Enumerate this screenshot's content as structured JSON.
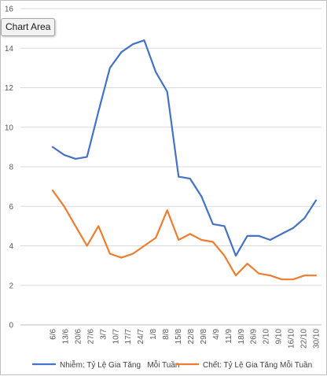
{
  "tooltip": {
    "label": "Chart Area"
  },
  "chart_data": {
    "type": "line",
    "title": "",
    "xlabel": "",
    "ylabel": "",
    "ylim": [
      0,
      16
    ],
    "yticks": [
      0,
      2,
      4,
      6,
      8,
      10,
      12,
      14,
      16
    ],
    "grid": "horizontal",
    "legend_position": "bottom",
    "categories": [
      "6/6",
      "13/6",
      "20/6",
      "27/6",
      "3/7",
      "10/7",
      "17/7",
      "24/7",
      "1/8",
      "8/8",
      "15/8",
      "22/8",
      "29/8",
      "4/9",
      "11/9",
      "18/9",
      "26/9",
      "2/10",
      "9/10",
      "16/10",
      "22/10",
      "30/10"
    ],
    "x": [
      "6/6",
      "",
      "13/6",
      "20/6",
      "27/6",
      "3/7",
      "10/7",
      "",
      "17/7",
      "24/7",
      "1/8",
      "8/8",
      "15/8",
      "22/8",
      "29/8",
      "4/9",
      "11/9",
      "18/9",
      "26/9",
      "2/10",
      "9/10",
      "16/10",
      "22/10",
      "30/10"
    ],
    "series": [
      {
        "name": "Nhiễm: Tỷ Lệ Gia Tăng   Mỗi Tuần",
        "color": "#4472C4",
        "values": [
          9.0,
          8.6,
          8.4,
          8.5,
          10.8,
          13.0,
          13.8,
          14.2,
          14.4,
          12.8,
          11.8,
          7.5,
          7.4,
          6.5,
          5.1,
          5.0,
          3.5,
          4.5,
          4.5,
          4.3,
          4.6,
          4.9,
          5.4,
          6.3
        ]
      },
      {
        "name": "Chết: Tỷ Lệ Gia Tăng Mỗi Tuần",
        "color": "#ED7D31",
        "values": [
          6.8,
          6.0,
          5.0,
          4.0,
          5.0,
          3.6,
          3.4,
          3.6,
          4.0,
          4.4,
          5.8,
          4.3,
          4.6,
          4.3,
          4.2,
          3.5,
          2.5,
          3.1,
          2.6,
          2.5,
          2.3,
          2.3,
          2.5,
          2.5
        ]
      }
    ]
  }
}
